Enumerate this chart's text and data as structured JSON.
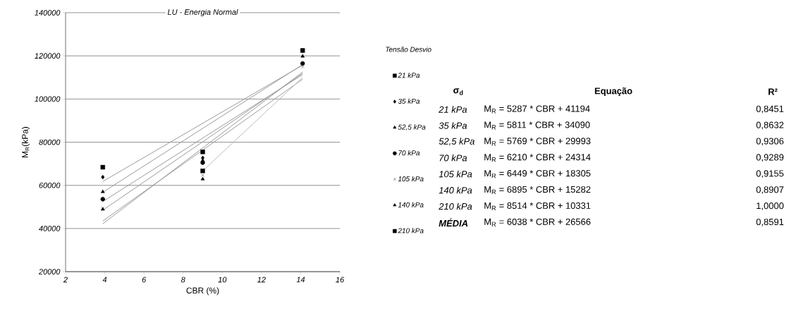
{
  "chart_data": {
    "type": "scatter",
    "title": "LU - Energia Normal",
    "xlabel": "CBR (%)",
    "ylabel": "M$_{R}$(kPa)",
    "legend_title": "Tensão Desvio",
    "xlim": [
      2,
      16
    ],
    "ylim": [
      20000,
      140000
    ],
    "xticks": [
      2,
      4,
      6,
      8,
      10,
      12,
      14,
      16
    ],
    "yticks": [
      20000,
      40000,
      60000,
      80000,
      100000,
      120000,
      140000
    ],
    "grid": "y",
    "legend": "right",
    "x": [
      3.9,
      9.0,
      14.1
    ],
    "series": [
      {
        "name": "21 kPa",
        "color": "#000000",
        "marker": "square",
        "values": [
          68400,
          75500,
          122500
        ]
      },
      {
        "name": "35 kPa",
        "color": "#000000",
        "marker": "diamond",
        "values": [
          63800,
          72700,
          122500
        ]
      },
      {
        "name": "52,5 kPa",
        "color": "#000000",
        "marker": "triangle",
        "values": [
          57000,
          71500,
          null
        ]
      },
      {
        "name": "70 kPa",
        "color": "#000000",
        "marker": "circle",
        "values": [
          53600,
          70500,
          116500
        ]
      },
      {
        "name": "105 kPa",
        "color": "#000000",
        "marker": "cross",
        "values": [
          49300,
          64700,
          115000
        ]
      },
      {
        "name": "140 kPa",
        "color": "#000000",
        "marker": "triangle",
        "values": [
          48900,
          62900,
          119800
        ]
      },
      {
        "name": "210 kPa",
        "color": "#000000",
        "marker": "square",
        "values": [
          null,
          66700,
          null
        ]
      },
      {
        "type": "line",
        "color": "#999999",
        "x": [
          3.9,
          14.1
        ],
        "values": [
          61800,
          115700
        ]
      },
      {
        "type": "line",
        "color": "#999999",
        "x": [
          3.9,
          14.1
        ],
        "values": [
          56800,
          116000
        ]
      },
      {
        "type": "line",
        "color": "#999999",
        "x": [
          3.9,
          14.1
        ],
        "values": [
          52500,
          111300
        ]
      },
      {
        "type": "line",
        "color": "#999999",
        "x": [
          3.9,
          14.1
        ],
        "values": [
          48500,
          111900
        ]
      },
      {
        "type": "line",
        "color": "#999999",
        "x": [
          3.9,
          14.1
        ],
        "values": [
          43500,
          109200
        ]
      },
      {
        "type": "line",
        "color": "#999999",
        "x": [
          3.9,
          14.1
        ],
        "values": [
          42200,
          112500
        ]
      },
      {
        "type": "line",
        "color": "#bbbbbb",
        "x": [
          9.0,
          14.1
        ],
        "values": [
          66700,
          110000
        ]
      }
    ],
    "annotations": [
      "σ$_{d}$",
      "Equação",
      "R²",
      "21 kPa",
      "M$_{R}$ =  5287  * CBR +  41194",
      "0,8451",
      "35 kPa",
      "M$_{R}$ =  5811  * CBR +  34090",
      "0,8632",
      "52,5 kPa",
      "M$_{R}$ =  5769  * CBR +  29993",
      "0,9306",
      "70 kPa",
      "M$_{R}$ =  6210  * CBR +  24314",
      "0,9289",
      "105 kPa",
      "M$_{R}$ =  6449  * CBR +  18305",
      "0,9155",
      "140 kPa",
      "M$_{R}$ =  6895  * CBR +  15282",
      "0,8907",
      "210 kPa",
      "M$_{R}$ =  8514  * CBR +  10331",
      "1,0000",
      "MÉDIA",
      "M$_{R}$ =  6038  * CBR +  26566",
      "0,8591"
    ]
  }
}
